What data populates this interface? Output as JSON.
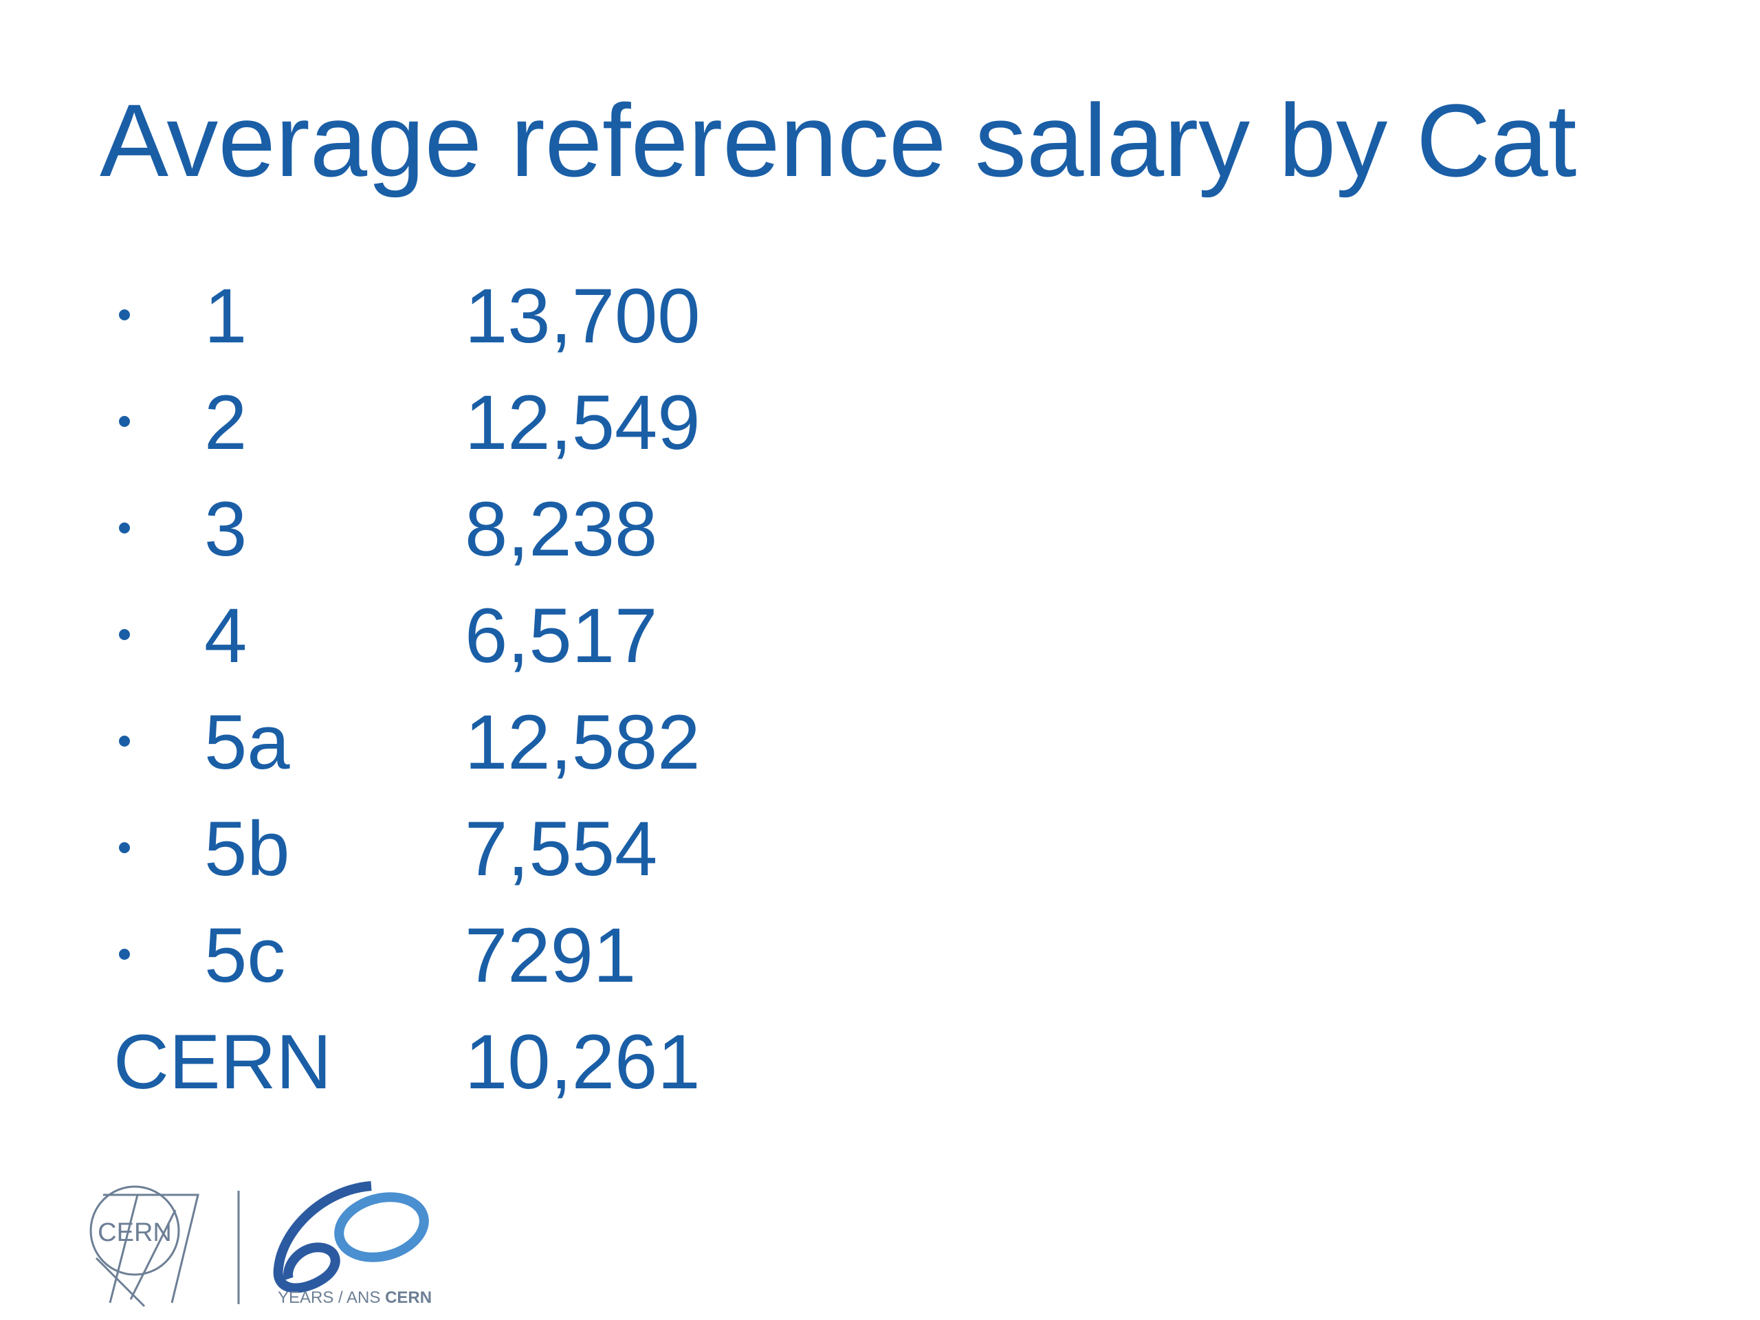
{
  "title": "Average reference salary by Cat",
  "rows": [
    {
      "category": "1",
      "value": "13,700"
    },
    {
      "category": "2",
      "value": "12,549"
    },
    {
      "category": "3",
      "value": "8,238"
    },
    {
      "category": "4",
      "value": "6,517"
    },
    {
      "category": "5a",
      "value": "12,582"
    },
    {
      "category": "5b",
      "value": "7,554"
    },
    {
      "category": "5c",
      "value": "7291"
    }
  ],
  "total": {
    "label": "CERN",
    "value": "10,261"
  },
  "logo": {
    "cern": "CERN",
    "anniversary": "YEARS / ANS",
    "anniversary_org": "CERN"
  }
}
